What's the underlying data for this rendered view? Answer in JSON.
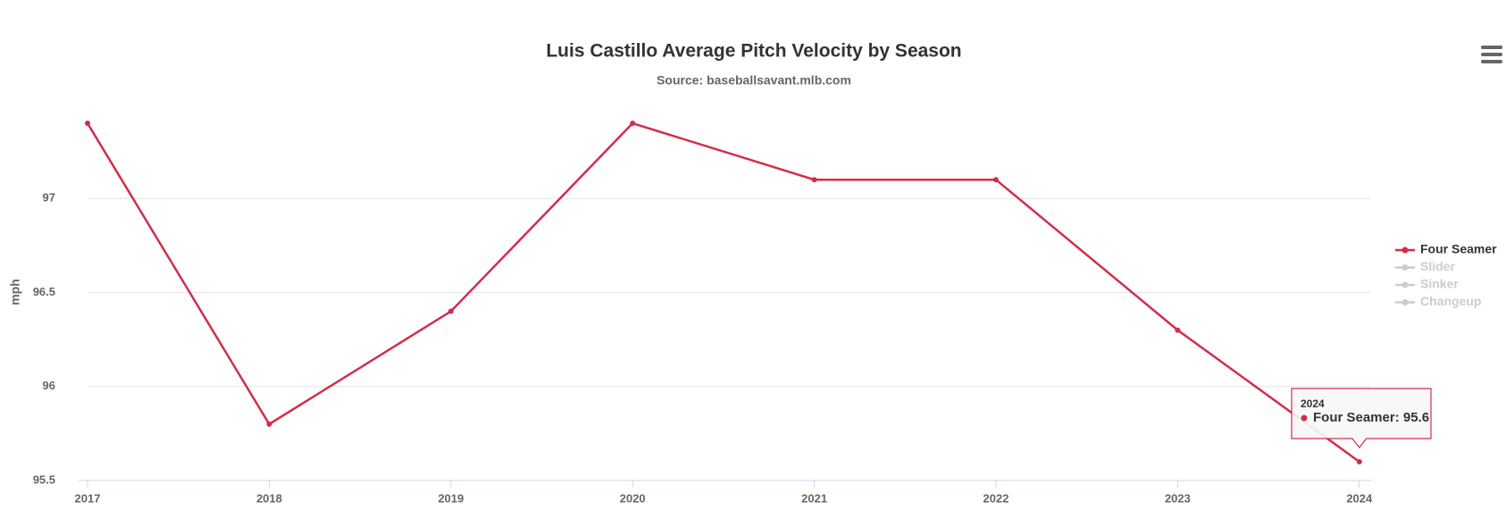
{
  "chart_data": {
    "type": "line",
    "title": "Luis Castillo Average Pitch Velocity by Season",
    "subtitle": "Source: baseballsavant.mlb.com",
    "y_label": "mph",
    "categories": [
      "2017",
      "2018",
      "2019",
      "2020",
      "2021",
      "2022",
      "2023",
      "2024"
    ],
    "series": [
      {
        "name": "Four Seamer",
        "color": "#d22d4a",
        "visible": true,
        "values": [
          97.4,
          95.8,
          96.4,
          97.4,
          97.1,
          97.1,
          96.3,
          95.6
        ]
      },
      {
        "name": "Slider",
        "color": "#cccccc",
        "visible": false
      },
      {
        "name": "Sinker",
        "color": "#cccccc",
        "visible": false
      },
      {
        "name": "Changeup",
        "color": "#cccccc",
        "visible": false
      }
    ],
    "ylim": [
      95.5,
      97.5
    ],
    "yticks": [
      95.5,
      96,
      96.5,
      97
    ],
    "grid": true,
    "legend": "right",
    "tooltip_index": 7
  }
}
